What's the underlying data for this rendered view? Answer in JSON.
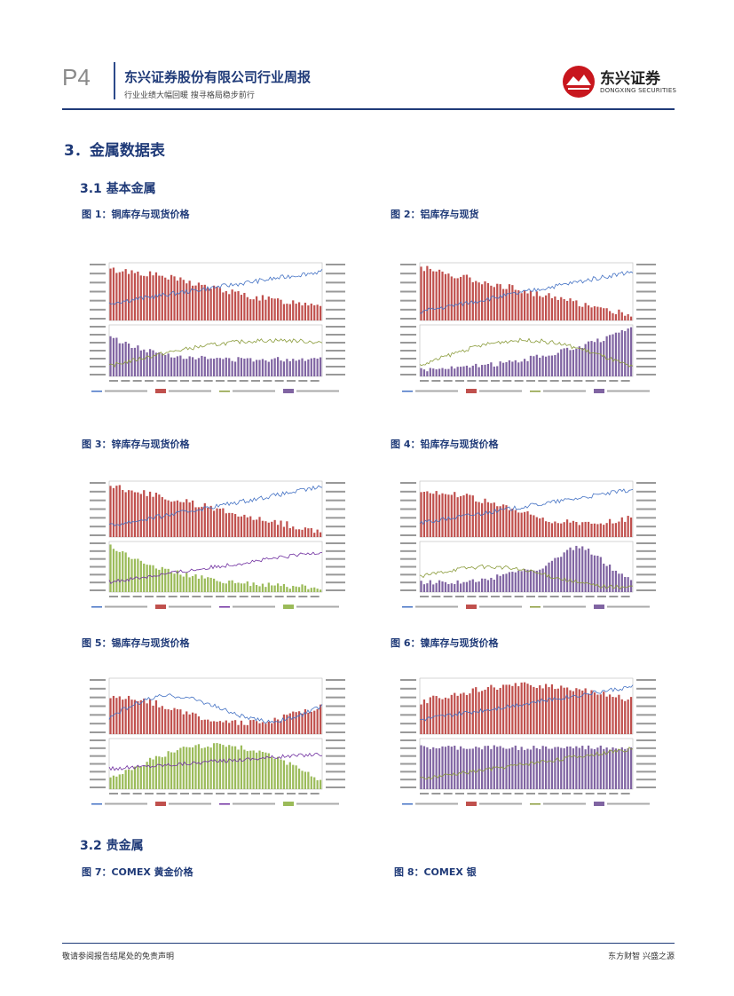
{
  "header": {
    "page_number": "P4",
    "company_title": "东兴证券股份有限公司行业周报",
    "subtitle": "行业业绩大幅回暖 搜寻格局稳步前行",
    "logo_cn": "东兴证券",
    "logo_en": "DONGXING SECURITIES"
  },
  "section": {
    "title": "3．金属数据表"
  },
  "subsections": [
    {
      "title": "3.1  基本金属"
    },
    {
      "title": "3.2  贵金属"
    }
  ],
  "figures": [
    {
      "caption": "图 1：铜库存与现货价格"
    },
    {
      "caption": "图 2：铝库存与现货"
    },
    {
      "caption": "图 3：锌库存与现货价格"
    },
    {
      "caption": "图 4：铅库存与现货价格"
    },
    {
      "caption": "图 5：锡库存与现货价格"
    },
    {
      "caption": "图 6：镍库存与现货价格"
    },
    {
      "caption": "图 7：COMEX 黄金价格"
    },
    {
      "caption": "图 8：COMEX 银"
    }
  ],
  "colors": {
    "brand_blue": "#1f3a78",
    "bar_red": "#c0504d",
    "bar_purple": "#8064a2",
    "bar_green": "#9bbb59",
    "line_blue": "#4472c4",
    "line_olive": "#8a9b3a",
    "line_purple": "#7030a0"
  },
  "footer": {
    "left": "敬请参阅报告结尾处的免责声明",
    "right": "东方财智 兴盛之源"
  }
}
